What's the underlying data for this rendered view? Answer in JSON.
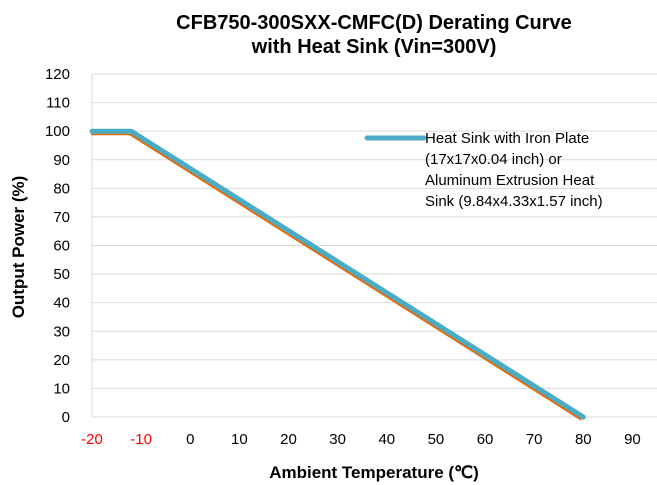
{
  "chart_data": {
    "type": "line",
    "title": [
      "CFB750-300SXX-CMFC(D)  Derating Curve",
      "with Heat Sink (Vin=300V)"
    ],
    "xlabel": "Ambient Temperature (℃)",
    "ylabel": "Output Power (%)",
    "xlim": [
      -20,
      95
    ],
    "ylim": [
      0,
      120
    ],
    "x_ticks": [
      -20,
      -10,
      0,
      10,
      20,
      30,
      40,
      50,
      60,
      70,
      80,
      90
    ],
    "x_tick_colors": [
      "#ff0000",
      "#ff0000",
      "#000000",
      "#000000",
      "#000000",
      "#000000",
      "#000000",
      "#000000",
      "#000000",
      "#000000",
      "#000000",
      "#000000"
    ],
    "y_ticks": [
      0,
      10,
      20,
      30,
      40,
      50,
      60,
      70,
      80,
      90,
      100,
      110,
      120
    ],
    "grid": "horizontal",
    "legend_position": "top-right",
    "series": [
      {
        "name": [
          "Heat Sink with Iron Plate",
          "(17x17x0.04 inch) or",
          "Aluminum Extrusion Heat",
          "Sink  (9.84x4.33x1.57 inch)"
        ],
        "color": "#4bacc6",
        "x": [
          -20,
          -12,
          80
        ],
        "y": [
          100,
          100,
          0
        ]
      }
    ]
  }
}
